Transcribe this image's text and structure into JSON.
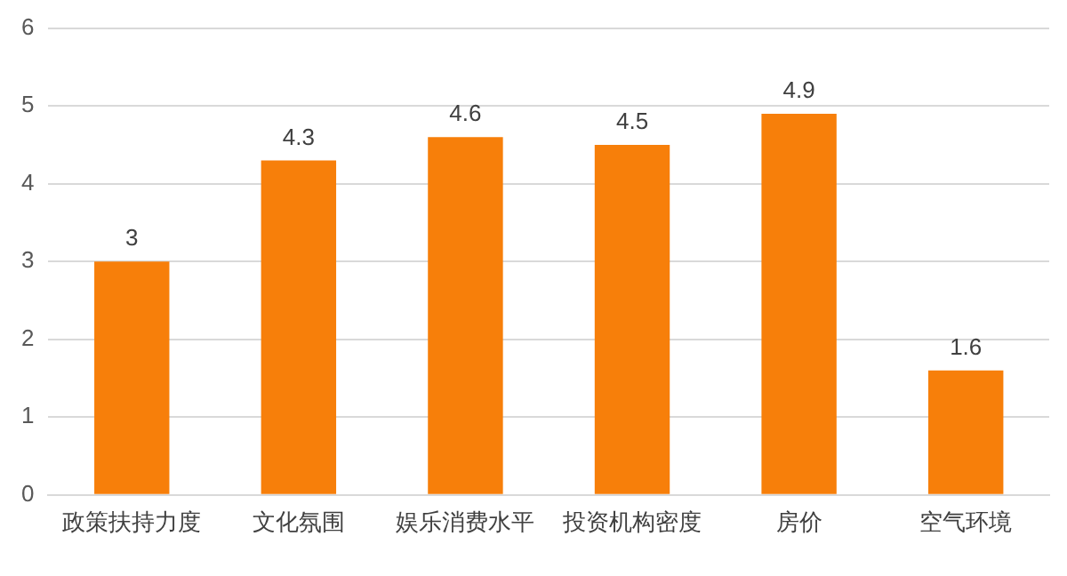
{
  "chart_data": {
    "type": "bar",
    "categories": [
      "政策扶持力度",
      "文化氛围",
      "娱乐消费水平",
      "投资机构密度",
      "房价",
      "空气环境"
    ],
    "values": [
      3,
      4.3,
      4.6,
      4.5,
      4.9,
      1.6
    ],
    "color": "#f77f0a",
    "ylim": [
      0,
      6
    ],
    "yticks": [
      0,
      1,
      2,
      3,
      4,
      5,
      6
    ],
    "grid": "y",
    "data_labels": true
  }
}
